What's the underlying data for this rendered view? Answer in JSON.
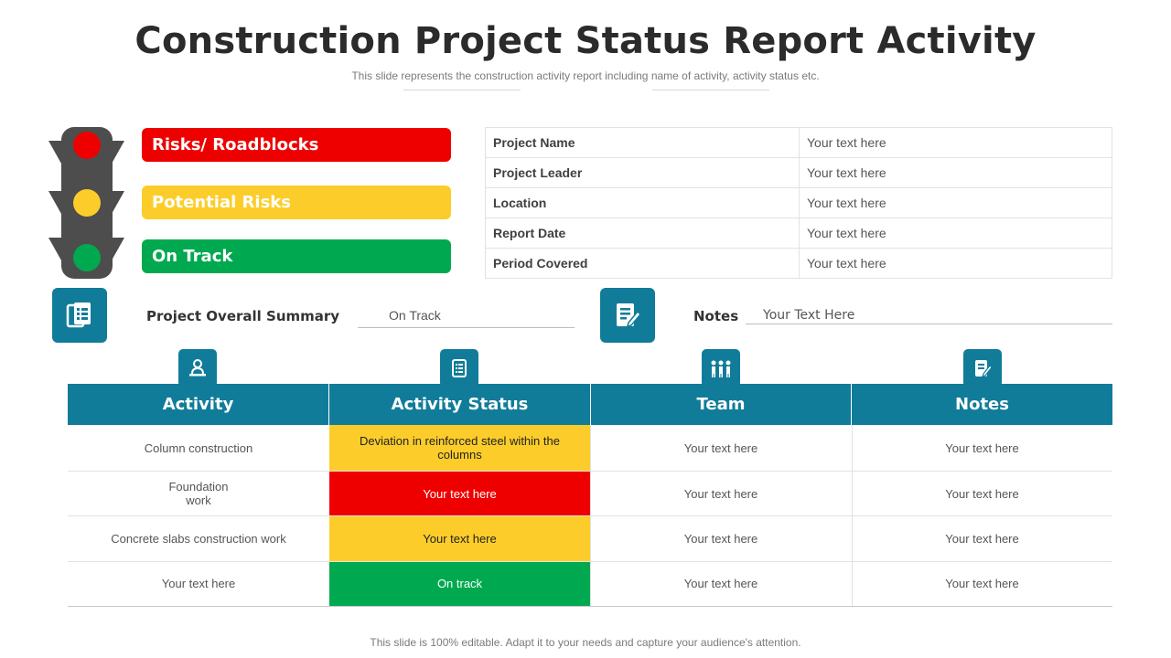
{
  "header": {
    "title": "Construction Project Status Report Activity",
    "subtitle": "This slide represents the construction activity report including name of activity, activity status etc."
  },
  "legend": [
    {
      "label": "Risks/ Roadblocks",
      "color": "#ee0000"
    },
    {
      "label": "Potential Risks",
      "color": "#fccd2a"
    },
    {
      "label": "On Track",
      "color": "#00a94f"
    }
  ],
  "info_table": [
    {
      "key": "Project Name",
      "value": "Your text here"
    },
    {
      "key": "Project Leader",
      "value": "Your text here"
    },
    {
      "key": "Location",
      "value": "Your text here"
    },
    {
      "key": "Report Date",
      "value": "Your text here"
    },
    {
      "key": "Period Covered",
      "value": "Your text here"
    }
  ],
  "summary": {
    "label": "Project Overall Summary",
    "value": "On Track",
    "icon": "document-list-icon"
  },
  "notes": {
    "label": "Notes",
    "value": "Your Text Here",
    "icon": "edit-document-icon"
  },
  "table": {
    "headers": [
      "Activity",
      "Activity Status",
      "Team",
      "Notes"
    ],
    "header_icons": [
      "worker-desk-icon",
      "checklist-icon",
      "team-icon",
      "notes-edit-icon"
    ],
    "rows": [
      {
        "activity": "Column  construction",
        "status": "Deviation  in reinforced  steel within the columns",
        "status_color": "#fccd2a",
        "status_text_color": "#222222",
        "team": "Your text here",
        "notes": "Your text here"
      },
      {
        "activity": "Foundation\nwork",
        "status": "Your text here",
        "status_color": "#ee0000",
        "status_text_color": "#ffffff",
        "team": "Your text here",
        "notes": "Your text here"
      },
      {
        "activity": "Concrete  slabs construction work",
        "status": "Your text here",
        "status_color": "#fccd2a",
        "status_text_color": "#222222",
        "team": "Your text here",
        "notes": "Your text here"
      },
      {
        "activity": "Your text here",
        "status": "On track",
        "status_color": "#00a94f",
        "status_text_color": "#ffffff",
        "team": "Your text here",
        "notes": "Your text here"
      }
    ]
  },
  "footer": "This slide is 100% editable. Adapt it to your needs and capture your audience's attention.",
  "colors": {
    "accent": "#117c99",
    "red": "#ee0000",
    "yellow": "#fccd2a",
    "green": "#00a94f"
  }
}
